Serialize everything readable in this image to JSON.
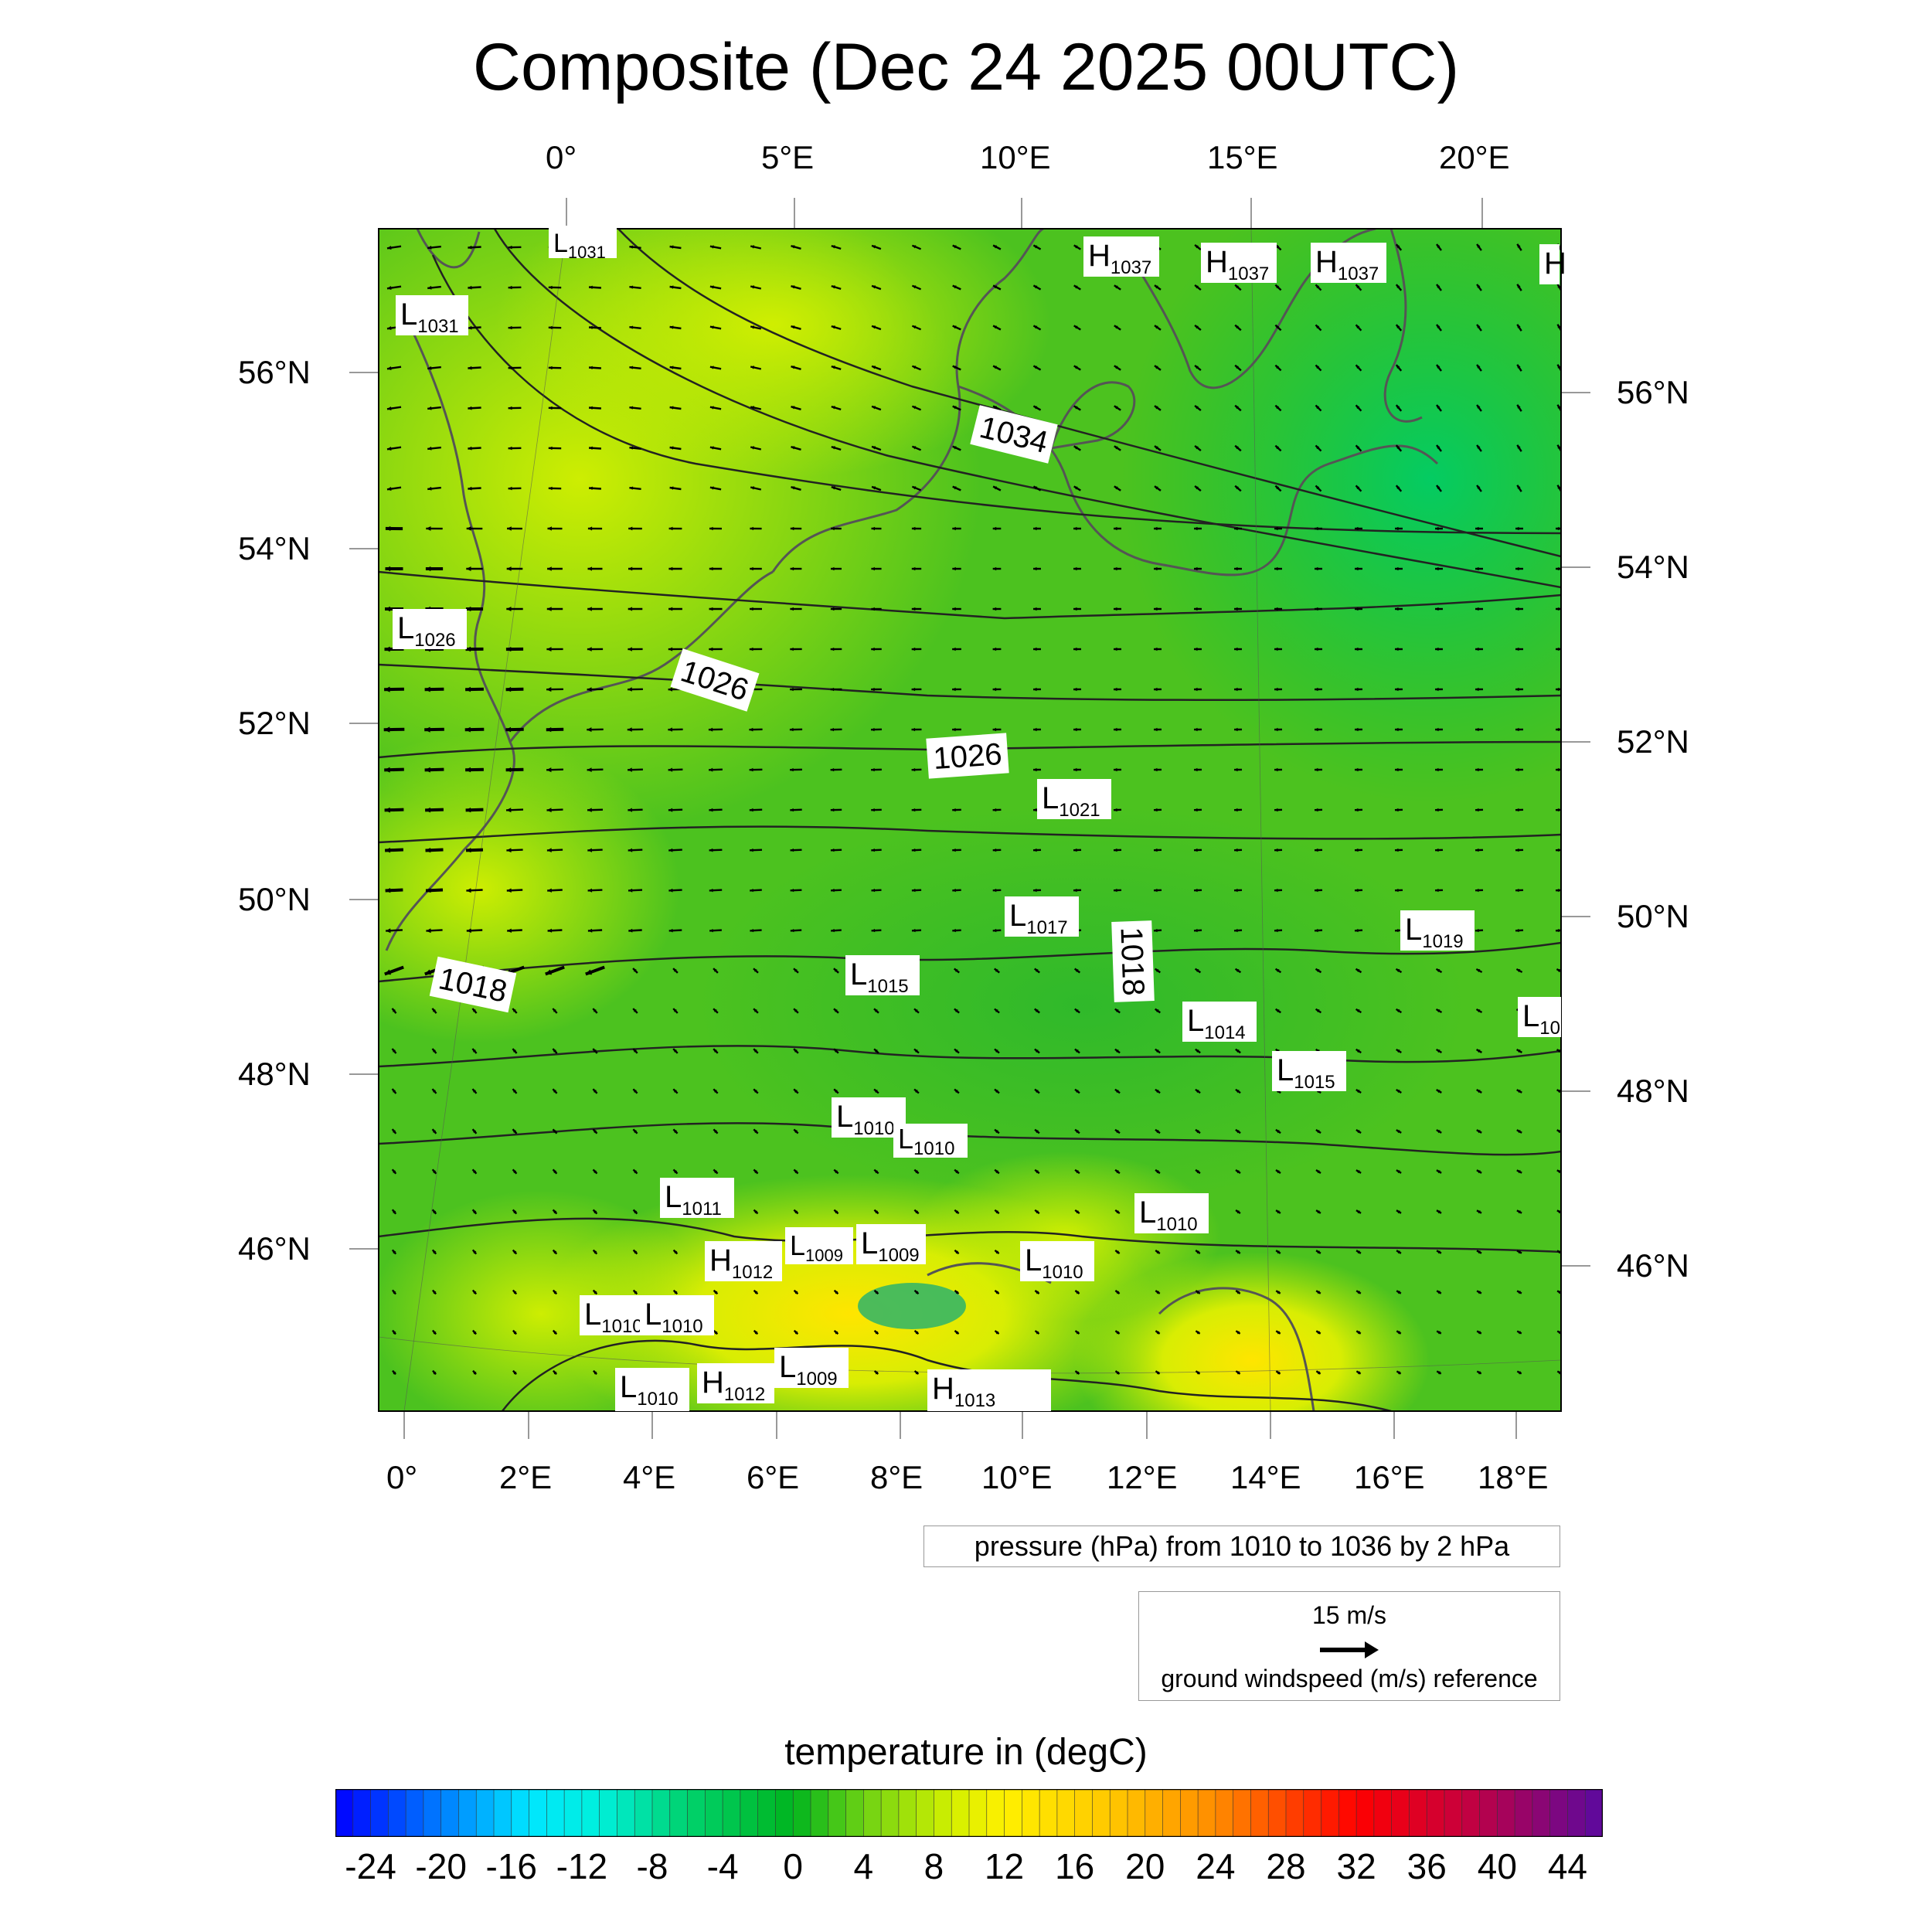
{
  "title": "Composite (Dec 24 2025 00UTC)",
  "axes": {
    "top_ticks": [
      "0°",
      "5°E",
      "10°E",
      "15°E",
      "20°E"
    ],
    "bottom_ticks": [
      "0°",
      "2°E",
      "4°E",
      "6°E",
      "8°E",
      "10°E",
      "12°E",
      "14°E",
      "16°E",
      "18°E"
    ],
    "left_ticks": [
      "56°N",
      "54°N",
      "52°N",
      "50°N",
      "48°N",
      "46°N"
    ],
    "right_ticks": [
      "56°N",
      "54°N",
      "52°N",
      "50°N",
      "48°N",
      "46°N"
    ]
  },
  "isobar_labels": [
    "1034",
    "1026",
    "1026",
    "1018",
    "1018"
  ],
  "pressure_centers": [
    {
      "type": "L",
      "value": "1031"
    },
    {
      "type": "L",
      "value": "1031"
    },
    {
      "type": "H",
      "value": "1037"
    },
    {
      "type": "H",
      "value": "1037"
    },
    {
      "type": "H",
      "value": "1037"
    },
    {
      "type": "H",
      "value": ""
    },
    {
      "type": "L",
      "value": "1026"
    },
    {
      "type": "L",
      "value": "1021"
    },
    {
      "type": "L",
      "value": "1017"
    },
    {
      "type": "L",
      "value": "1019"
    },
    {
      "type": "L",
      "value": "1015"
    },
    {
      "type": "L",
      "value": "1014"
    },
    {
      "type": "L",
      "value": "10"
    },
    {
      "type": "L",
      "value": "1015"
    },
    {
      "type": "L",
      "value": "1010"
    },
    {
      "type": "L",
      "value": "1010"
    },
    {
      "type": "L",
      "value": "1011"
    },
    {
      "type": "L",
      "value": "1010"
    },
    {
      "type": "H",
      "value": "1012"
    },
    {
      "type": "L",
      "value": "1009"
    },
    {
      "type": "L",
      "value": "1009"
    },
    {
      "type": "L",
      "value": "1010"
    },
    {
      "type": "L",
      "value": "1010"
    },
    {
      "type": "L",
      "value": "1010"
    },
    {
      "type": "L",
      "value": "1009"
    },
    {
      "type": "L",
      "value": "1010"
    },
    {
      "type": "H",
      "value": "1012"
    },
    {
      "type": "H",
      "value": "1013"
    }
  ],
  "pressure_legend": "pressure (hPa) from 1010 to 1036 by 2 hPa",
  "wind_legend": {
    "speed": "15 m/s",
    "caption": "ground windspeed (m/s) reference"
  },
  "colorbar": {
    "title": "temperature in (degC)",
    "ticks": [
      "-24",
      "-20",
      "-16",
      "-12",
      "-8",
      "-4",
      "0",
      "4",
      "8",
      "12",
      "16",
      "20",
      "24",
      "28",
      "32",
      "36",
      "40",
      "44"
    ],
    "min": -26,
    "max": 46,
    "step": 1
  },
  "colors": {
    "cold": "#0000ff",
    "zero": "#00c000",
    "warm_mid": "#ffff00",
    "hot": "#ff0000",
    "max": "#5a0a9a"
  }
}
